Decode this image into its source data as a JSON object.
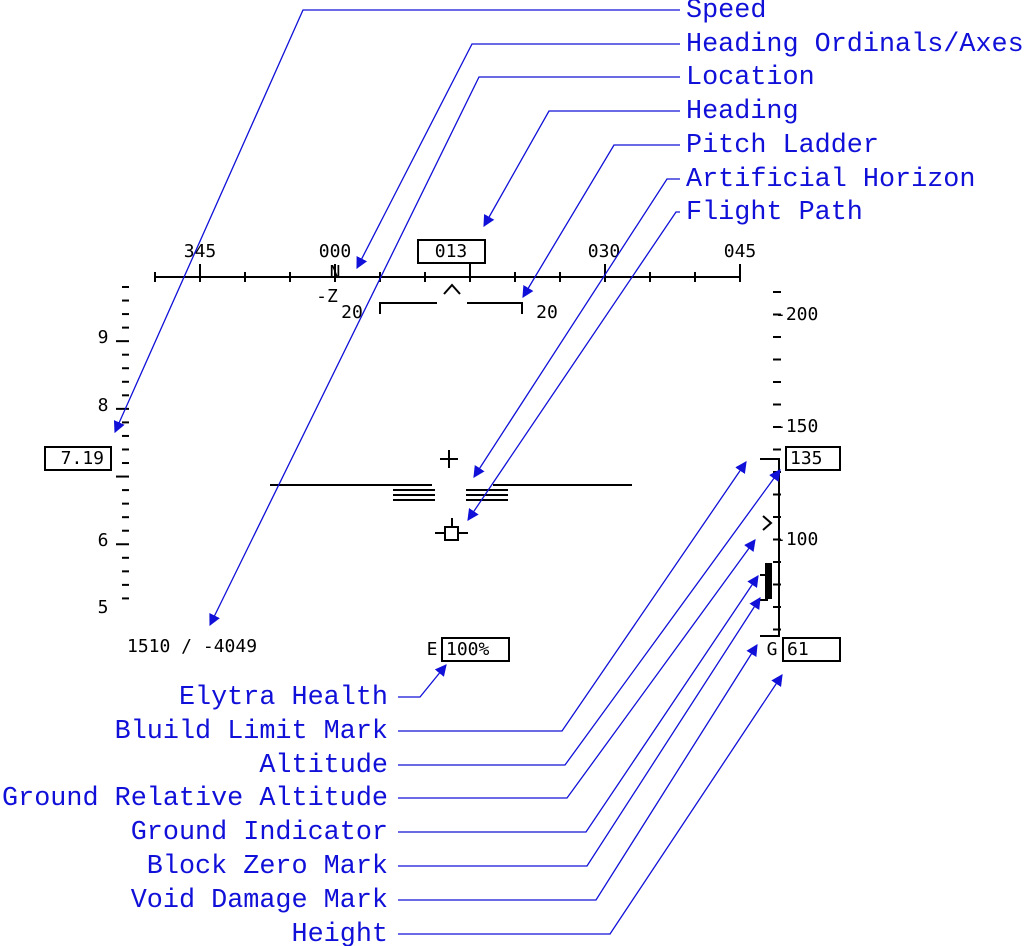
{
  "annotations": {
    "top": [
      "Speed",
      "Heading Ordinals/Axes",
      "Location",
      "Heading",
      "Pitch Ladder",
      "Artificial Horizon",
      "Flight Path"
    ],
    "bottom": [
      "Elytra Health",
      "Bluild Limit Mark",
      "Altitude",
      "Ground Relative Altitude",
      "Ground Indicator",
      "Block Zero Mark",
      "Void Damage Mark",
      "Height"
    ]
  },
  "hud": {
    "heading_labels": [
      "345",
      "000",
      "030",
      "045"
    ],
    "heading": "013",
    "ordinal": "N",
    "axis": "-Z",
    "pitch_labels": [
      "20",
      "20"
    ],
    "speed_labels": [
      "9",
      "8",
      "6",
      "5"
    ],
    "speed": "7.19",
    "altitude_labels": [
      "-200",
      "-150",
      "-100"
    ],
    "altitude": "135",
    "location": "1510 / -4049",
    "elytra_prefix": "E",
    "elytra": "100%",
    "ground_prefix": "G",
    "height": "61"
  }
}
